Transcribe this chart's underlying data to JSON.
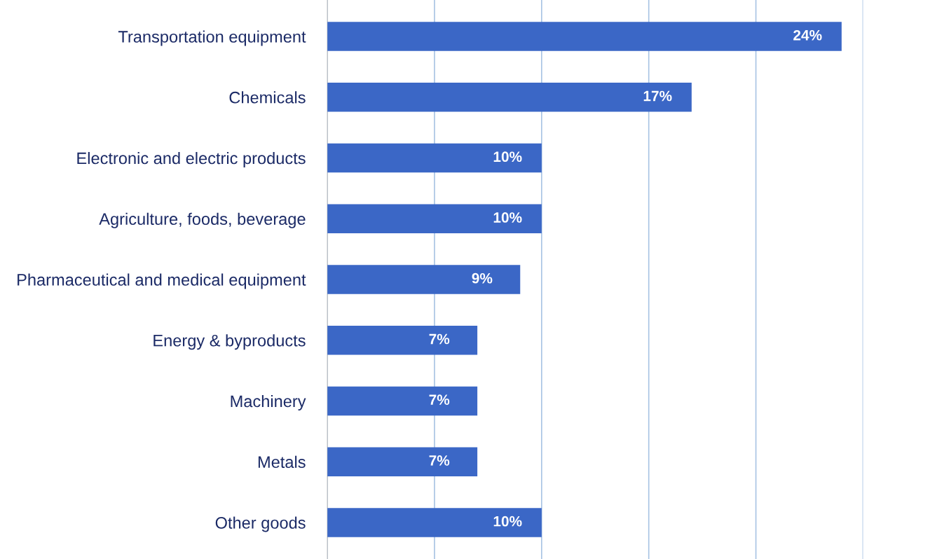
{
  "chart_data": {
    "type": "bar",
    "orientation": "horizontal",
    "categories": [
      "Transportation equipment",
      "Chemicals",
      "Electronic and electric products",
      "Agriculture, foods, beverage",
      "Pharmaceutical and medical equipment",
      "Energy & byproducts",
      "Machinery",
      "Metals",
      "Other goods"
    ],
    "values": [
      24,
      17,
      10,
      10,
      9,
      7,
      7,
      7,
      10
    ],
    "value_labels": [
      "24%",
      "17%",
      "10%",
      "10%",
      "9%",
      "7%",
      "7%",
      "7%",
      "10%"
    ],
    "color": "#3b67c6",
    "xlim": [
      0,
      25
    ],
    "xticks": [
      {
        "value": 0,
        "label": null
      },
      {
        "value": 5,
        "label": null
      },
      {
        "value": 10,
        "label": null
      },
      {
        "value": 15,
        "label": null
      },
      {
        "value": 20,
        "label": null
      },
      {
        "value": 25,
        "label": null
      }
    ],
    "grid": "x",
    "tick_labels": "y"
  }
}
